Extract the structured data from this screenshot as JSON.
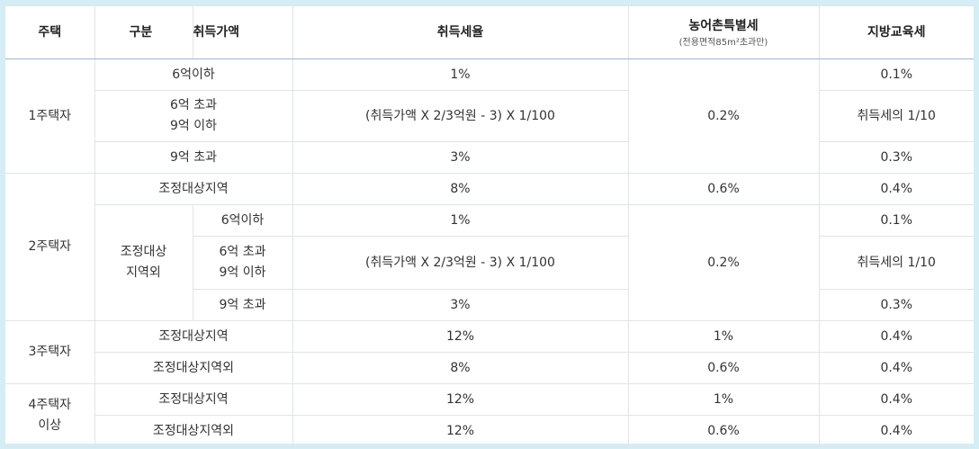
{
  "header": [
    "주택",
    "구분",
    "취득가액",
    "취득세율",
    "농어촌특별세",
    "지방교육세"
  ],
  "header_note": "(전용면적85m²초과만)",
  "rows": [
    [
      "1주택자",
      "6억이하",
      "1%",
      "0.2%",
      "0.1%"
    ],
    [
      "6억 초과\n9억 이하",
      "(취득가액 X 2/3억원 - 3) X 1/100",
      "취득세의 1/10"
    ],
    [
      "9억 초과",
      "3%",
      "0.3%"
    ],
    [
      "2주택자",
      "조정대상지역",
      "8%",
      "0.6%",
      "0.4%"
    ],
    [
      "조정대상\n지역외",
      "6억이하",
      "1%",
      "0.2%",
      "0.1%"
    ],
    [
      "6억 초과\n9억 이하",
      "(취득가액 X 2/3억원 - 3) X 1/100",
      "취득세의 1/10"
    ],
    [
      "9억 초과",
      "3%",
      "0.3%"
    ],
    [
      "3주택자",
      "조정대상지역",
      "12%",
      "1%",
      "0.4%"
    ],
    [
      "조정대상지역외",
      "8%",
      "0.6%",
      "0.4%"
    ],
    [
      "4주택자\n이상",
      "조정대상지역",
      "12%",
      "1%",
      "0.4%"
    ],
    [
      "조정대상지역외",
      "12%",
      "0.6%",
      "0.4%"
    ]
  ]
}
